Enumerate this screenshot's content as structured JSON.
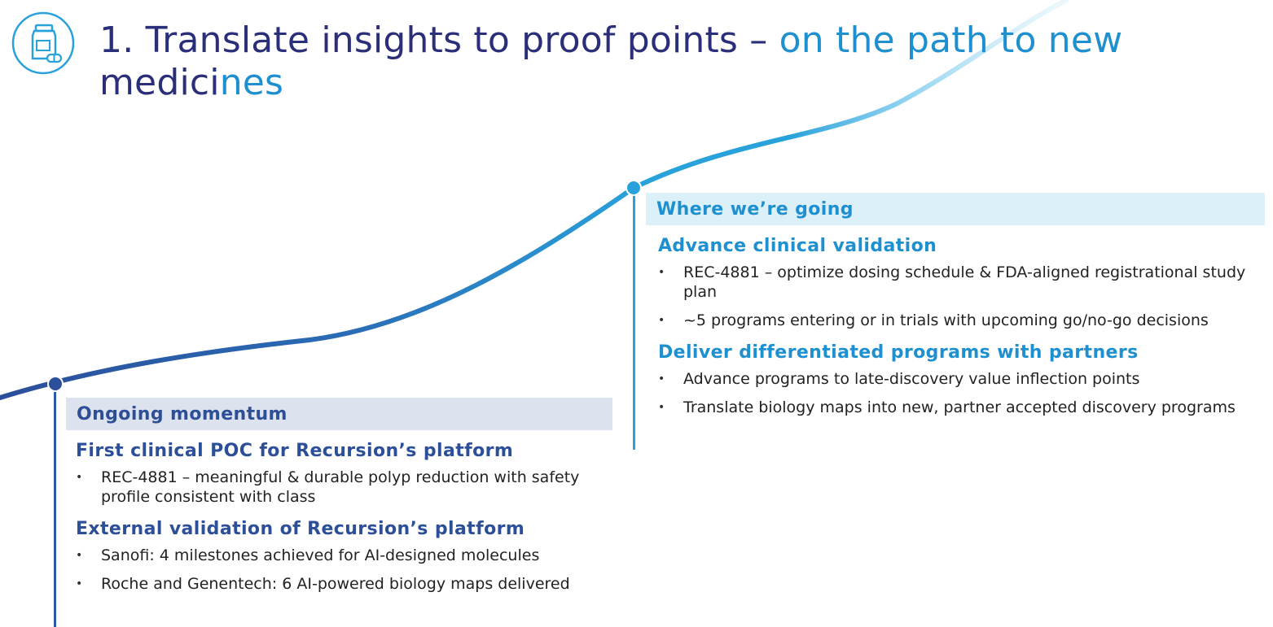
{
  "title": {
    "part1": "1. Translate insights to proof points – ",
    "part2": "on the path to new",
    "part3": "medici",
    "part4": "nes"
  },
  "colors": {
    "navy": "#2b2f7a",
    "blue": "#2c4f98",
    "cyan": "#1f90cf",
    "band_left": "#dde2ef",
    "band_right": "#dcf0f9"
  },
  "logo_icon": "pill-bottle-icon",
  "ongoing": {
    "heading": "Ongoing momentum",
    "sections": [
      {
        "title": "First clinical POC for Recursion’s platform",
        "bullets": [
          "REC-4881 – meaningful & durable polyp reduction with safety profile consistent with class"
        ]
      },
      {
        "title": "External validation of Recursion’s platform",
        "bullets": [
          "Sanofi: 4 milestones achieved for AI-designed molecules",
          "Roche and Genentech: 6 AI-powered biology maps delivered"
        ]
      }
    ]
  },
  "going": {
    "heading": "Where we’re going",
    "sections": [
      {
        "title": "Advance clinical validation",
        "bullets": [
          "REC-4881 – optimize dosing schedule & FDA-aligned registrational study plan",
          "~5 programs entering or in trials with upcoming go/no-go decisions"
        ]
      },
      {
        "title": "Deliver differentiated programs with partners",
        "bullets": [
          "Advance programs to late-discovery value inflection points",
          "Translate biology maps into new, partner accepted discovery programs"
        ]
      }
    ]
  }
}
